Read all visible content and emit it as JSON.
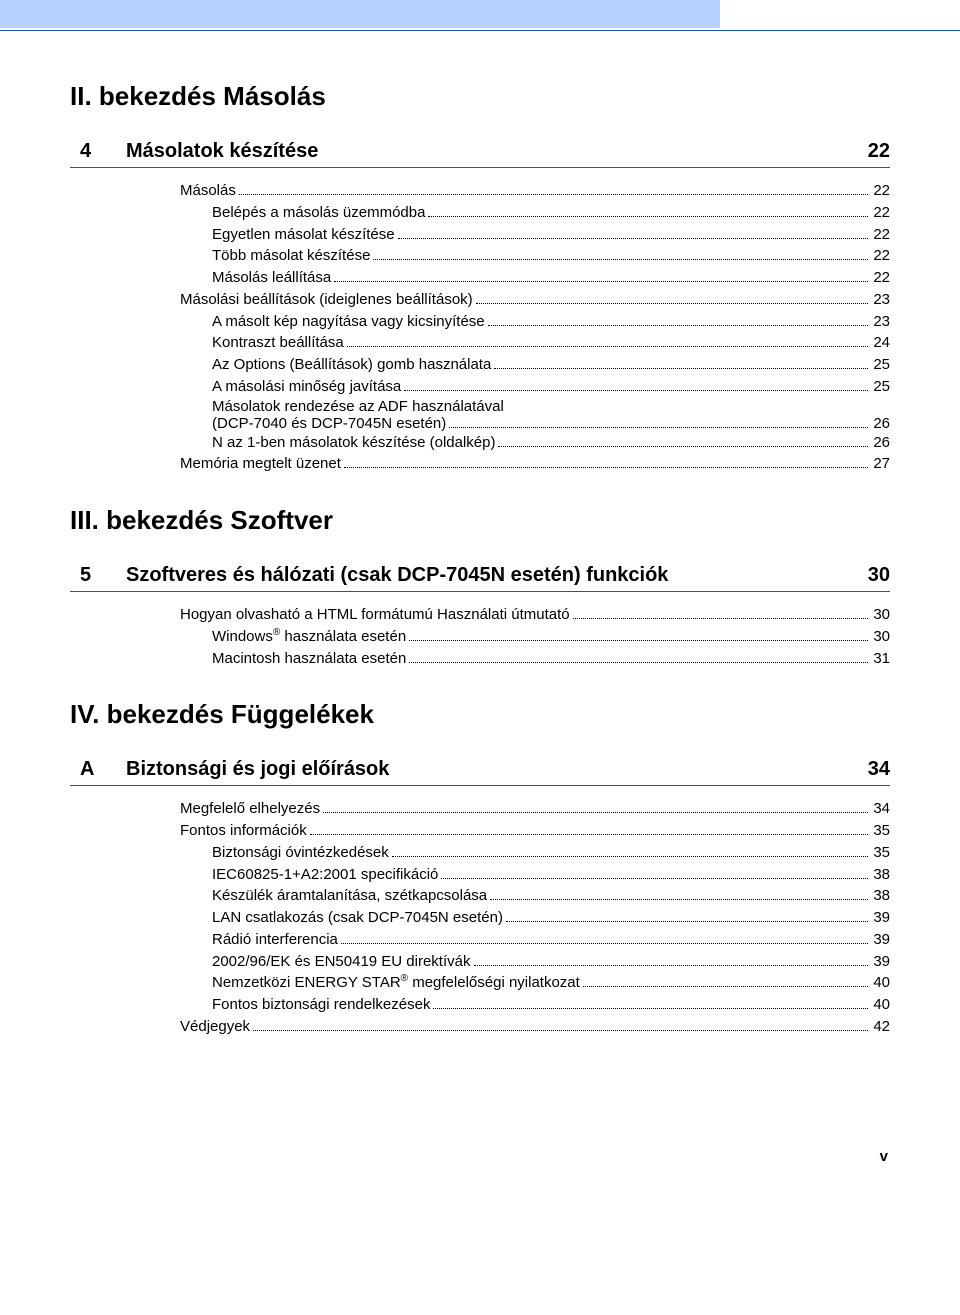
{
  "colors": {
    "header_band": "#b7d2ff",
    "rule": "#1056c6",
    "text": "#000000",
    "background": "#ffffff"
  },
  "typography": {
    "body_font": "Arial, Helvetica, sans-serif",
    "section_title_size": 26,
    "chapter_size": 20,
    "toc_size": 15
  },
  "section2": {
    "title": "II. bekezdés  Másolás",
    "chapter": {
      "num": "4",
      "label": "Másolatok készítése",
      "page": "22"
    },
    "items": [
      {
        "indent": 0,
        "label": "Másolás",
        "page": "22"
      },
      {
        "indent": 1,
        "label": "Belépés a másolás üzemmódba",
        "page": "22"
      },
      {
        "indent": 1,
        "label": "Egyetlen másolat készítése",
        "page": "22"
      },
      {
        "indent": 1,
        "label": "Több másolat készítése",
        "page": "22"
      },
      {
        "indent": 1,
        "label": "Másolás leállítása",
        "page": "22"
      },
      {
        "indent": 0,
        "label": "Másolási beállítások (ideiglenes beállítások)",
        "page": "23"
      },
      {
        "indent": 1,
        "label": "A másolt kép nagyítása vagy kicsinyítése",
        "page": "23"
      },
      {
        "indent": 1,
        "label": "Kontraszt beállítása",
        "page": "24"
      },
      {
        "indent": 1,
        "label": "Az Options (Beállítások) gomb használata",
        "page": "25"
      },
      {
        "indent": 1,
        "label": "A másolási minőség javítása",
        "page": "25"
      },
      {
        "indent": 1,
        "multiline": true,
        "line1": "Másolatok rendezése az ADF használatával",
        "line2": "(DCP-7040 és DCP-7045N esetén)",
        "page": "26"
      },
      {
        "indent": 1,
        "label": "N az 1-ben másolatok készítése (oldalkép)",
        "page": "26"
      },
      {
        "indent": 0,
        "label": "Memória megtelt üzenet",
        "page": "27"
      }
    ]
  },
  "section3": {
    "title": "III. bekezdés Szoftver",
    "chapter": {
      "num": "5",
      "label": "Szoftveres és hálózati (csak DCP-7045N esetén) funkciók",
      "page": "30"
    },
    "items": [
      {
        "indent": 0,
        "label": "Hogyan olvasható a HTML formátumú Használati útmutató",
        "page": "30"
      },
      {
        "indent": 1,
        "label_pre": "Windows",
        "sup": "®",
        "label_post": " használata esetén",
        "page": "30"
      },
      {
        "indent": 1,
        "label": "Macintosh használata esetén",
        "page": "31"
      }
    ]
  },
  "section4": {
    "title": "IV. bekezdés Függelékek",
    "chapter": {
      "num": "A",
      "label": "Biztonsági és jogi előírások",
      "page": "34"
    },
    "items": [
      {
        "indent": 0,
        "label": "Megfelelő elhelyezés",
        "page": "34"
      },
      {
        "indent": 0,
        "label": "Fontos információk",
        "page": "35"
      },
      {
        "indent": 1,
        "label": "Biztonsági óvintézkedések",
        "page": "35"
      },
      {
        "indent": 1,
        "label": "IEC60825-1+A2:2001 specifikáció",
        "page": "38"
      },
      {
        "indent": 1,
        "label": "Készülék áramtalanítása, szétkapcsolása",
        "page": "38"
      },
      {
        "indent": 1,
        "label": "LAN csatlakozás (csak DCP-7045N esetén)",
        "page": "39"
      },
      {
        "indent": 1,
        "label": "Rádió interferencia",
        "page": "39"
      },
      {
        "indent": 1,
        "label": "2002/96/EK és EN50419 EU direktívák",
        "page": "39"
      },
      {
        "indent": 1,
        "label_pre": "Nemzetközi ENERGY STAR",
        "sup": "®",
        "label_post": " megfelelőségi nyilatkozat",
        "page": "40"
      },
      {
        "indent": 1,
        "label": "Fontos biztonsági rendelkezések",
        "page": "40"
      },
      {
        "indent": 0,
        "label": "Védjegyek",
        "page": "42"
      }
    ]
  },
  "footer": {
    "page_number": "v"
  }
}
